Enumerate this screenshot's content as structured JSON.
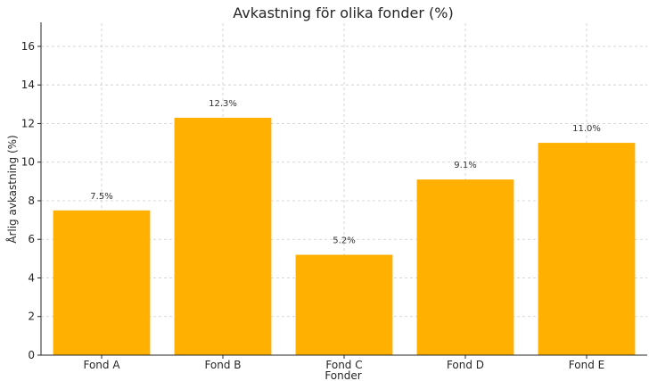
{
  "chart_data": {
    "type": "bar",
    "title": "Avkastning för olika fonder (%)",
    "xlabel": "Fonder",
    "ylabel": "Årlig avkastning (%)",
    "categories": [
      "Fond A",
      "Fond B",
      "Fond C",
      "Fond D",
      "Fond E"
    ],
    "values": [
      7.5,
      12.3,
      5.2,
      9.1,
      11.0
    ],
    "data_labels": [
      "7.5%",
      "12.3%",
      "5.2%",
      "9.1%",
      "11.0%"
    ],
    "ylim": [
      0,
      17.2
    ],
    "yticks": [
      0,
      2,
      4,
      6,
      8,
      10,
      12,
      14,
      16
    ],
    "grid": true,
    "bar_color": "#FFB000"
  }
}
